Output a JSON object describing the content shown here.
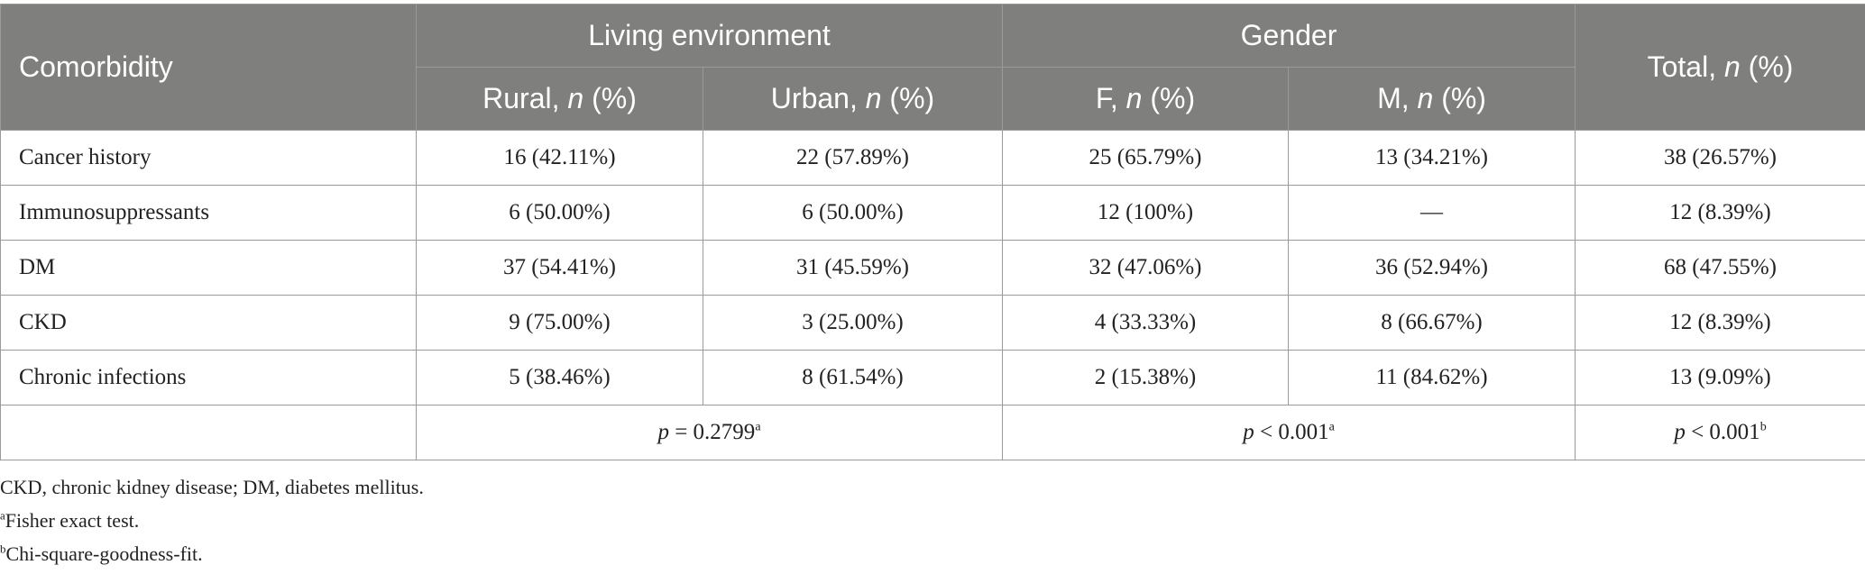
{
  "table": {
    "header": {
      "comorbidity": "Comorbidity",
      "living_environment": "Living environment",
      "gender": "Gender",
      "total_prefix": "Total, ",
      "n": "n",
      "pct": " (%)",
      "rural_prefix": "Rural, ",
      "urban_prefix": "Urban, ",
      "f_prefix": "F, ",
      "m_prefix": "M, "
    },
    "rows": [
      {
        "label": "Cancer history",
        "rural": "16 (42.11%)",
        "urban": "22 (57.89%)",
        "f": "25 (65.79%)",
        "m": "13 (34.21%)",
        "total": "38 (26.57%)"
      },
      {
        "label": "Immunosuppressants",
        "rural": "6 (50.00%)",
        "urban": "6 (50.00%)",
        "f": "12 (100%)",
        "m": "—",
        "total": "12 (8.39%)"
      },
      {
        "label": "DM",
        "rural": "37 (54.41%)",
        "urban": "31 (45.59%)",
        "f": "32 (47.06%)",
        "m": "36 (52.94%)",
        "total": "68 (47.55%)"
      },
      {
        "label": "CKD",
        "rural": "9 (75.00%)",
        "urban": "3 (25.00%)",
        "f": "4 (33.33%)",
        "m": "8 (66.67%)",
        "total": "12 (8.39%)"
      },
      {
        "label": "Chronic infections",
        "rural": "5 (38.46%)",
        "urban": "8 (61.54%)",
        "f": "2 (15.38%)",
        "m": "11 (84.62%)",
        "total": "13 (9.09%)"
      }
    ],
    "ptests": {
      "p": "p",
      "living": " = 0.2799",
      "living_sup": "a",
      "gender": " < 0.001",
      "gender_sup": "a",
      "total": " < 0.001",
      "total_sup": "b"
    }
  },
  "footnotes": {
    "abbrev": "CKD, chronic kidney disease; DM, diabetes mellitus.",
    "a_mark": "a",
    "a_text": "Fisher exact test.",
    "b_mark": "b",
    "b_text": "Chi-square-goodness-fit."
  }
}
